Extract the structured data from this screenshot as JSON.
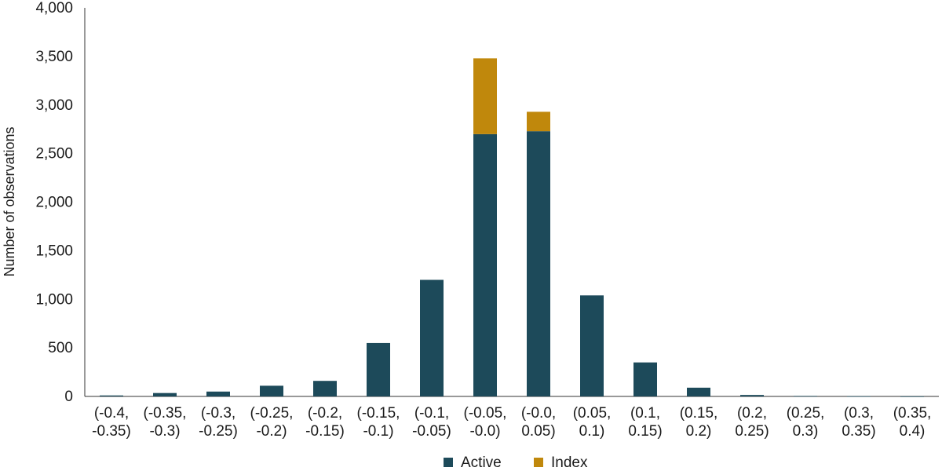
{
  "chart_data": {
    "type": "bar",
    "stacked": true,
    "ylabel": "Number of observations",
    "xlabel": "",
    "ylim": [
      0,
      4000
    ],
    "yticks": [
      "0",
      "500",
      "1,000",
      "1,500",
      "2,000",
      "2,500",
      "3,000",
      "3,500",
      "4,000"
    ],
    "grid": false,
    "legend_position": "bottom",
    "categories": [
      [
        "(-0.4,",
        "-0.35)"
      ],
      [
        "(-0.35,",
        "-0.3)"
      ],
      [
        "(-0.3,",
        "-0.25)"
      ],
      [
        "(-0.25,",
        "-0.2)"
      ],
      [
        "(-0.2,",
        "-0.15)"
      ],
      [
        "(-0.15,",
        "-0.1)"
      ],
      [
        "(-0.1,",
        "-0.05)"
      ],
      [
        "(-0.05,",
        "-0.0)"
      ],
      [
        "(-0.0,",
        "0.05)"
      ],
      [
        "(0.05,",
        "0.1)"
      ],
      [
        "(0.1,",
        "0.15)"
      ],
      [
        "(0.15,",
        "0.2)"
      ],
      [
        "(0.2,",
        "0.25)"
      ],
      [
        "(0.25,",
        "0.3)"
      ],
      [
        "(0.3,",
        "0.35)"
      ],
      [
        "(0.35,",
        "0.4)"
      ]
    ],
    "series": [
      {
        "name": "Active",
        "color": "#1d4a5a",
        "values": [
          10,
          35,
          50,
          110,
          160,
          550,
          1200,
          2700,
          2730,
          1040,
          350,
          90,
          15,
          5,
          2,
          1
        ]
      },
      {
        "name": "Index",
        "color": "#c0880c",
        "values": [
          0,
          0,
          0,
          0,
          0,
          0,
          0,
          780,
          200,
          0,
          0,
          0,
          0,
          0,
          0,
          0
        ]
      }
    ]
  }
}
